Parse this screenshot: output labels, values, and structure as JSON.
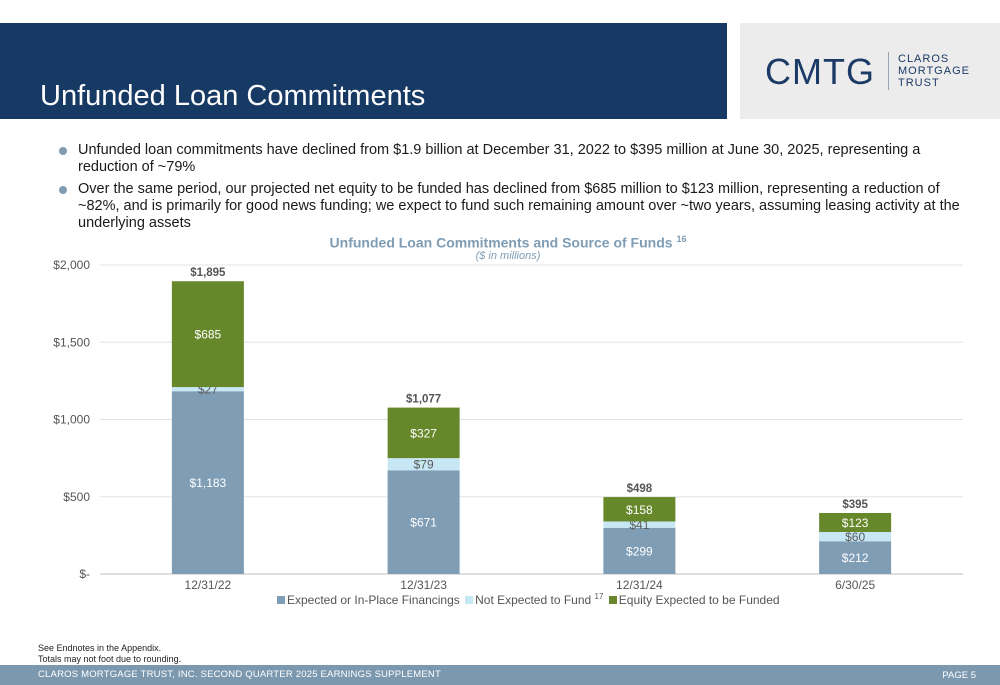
{
  "header": {
    "title": "Unfunded Loan Commitments",
    "logo_mark": "CMTG",
    "logo_lines": [
      "CLAROS",
      "MORTGAGE",
      "TRUST"
    ]
  },
  "bullets": [
    "Unfunded loan commitments have declined from $1.9 billion at December 31, 2022 to $395 million at June 30, 2025, representing a reduction of ~79%",
    "Over the same period, our projected net equity to be funded has declined from $685 million to $123 million, representing a reduction of ~82%, and is primarily for good news funding; we expect to fund such remaining amount over ~two years, assuming leasing activity at the underlying assets"
  ],
  "chart_data": {
    "type": "bar",
    "stacked": true,
    "title": "Unfunded Loan Commitments and Source of Funds",
    "title_note": "16",
    "subtitle": "($ in millions)",
    "categories": [
      "12/31/22",
      "12/31/23",
      "12/31/24",
      "6/30/25"
    ],
    "series": [
      {
        "name": "Expected or In-Place Financings",
        "note": "",
        "values": [
          1183,
          671,
          299,
          212
        ],
        "labels": [
          "$1,183",
          "$671",
          "$299",
          "$212"
        ],
        "color": "#7f9db5",
        "label_color": "#ffffff"
      },
      {
        "name": "Not Expected to Fund",
        "note": "17",
        "values": [
          27,
          79,
          41,
          60
        ],
        "labels": [
          "$27",
          "$79",
          "$41",
          "$60"
        ],
        "color": "#c6e7f3",
        "label_color": "#5a5a5a"
      },
      {
        "name": "Equity Expected to be Funded",
        "note": "",
        "values": [
          685,
          327,
          158,
          123
        ],
        "labels": [
          "$685",
          "$327",
          "$158",
          "$123"
        ],
        "color": "#66882a",
        "label_color": "#ffffff"
      }
    ],
    "totals": [
      1895,
      1077,
      498,
      395
    ],
    "total_labels": [
      "$1,895",
      "$1,077",
      "$498",
      "$395"
    ],
    "ylim": [
      0,
      2000
    ],
    "yticks": [
      0,
      500,
      1000,
      1500,
      2000
    ],
    "ytick_labels": [
      "$-",
      "$500",
      "$1,000",
      "$1,500",
      "$2,000"
    ],
    "grid": true,
    "legend_position": "bottom"
  },
  "notes": [
    "See Endnotes in the Appendix.",
    "Totals may not foot due to rounding."
  ],
  "footer": {
    "left": "CLAROS MORTGAGE TRUST, INC. SECOND QUARTER 2025 EARNINGS SUPPLEMENT",
    "right": "PAGE 5"
  }
}
